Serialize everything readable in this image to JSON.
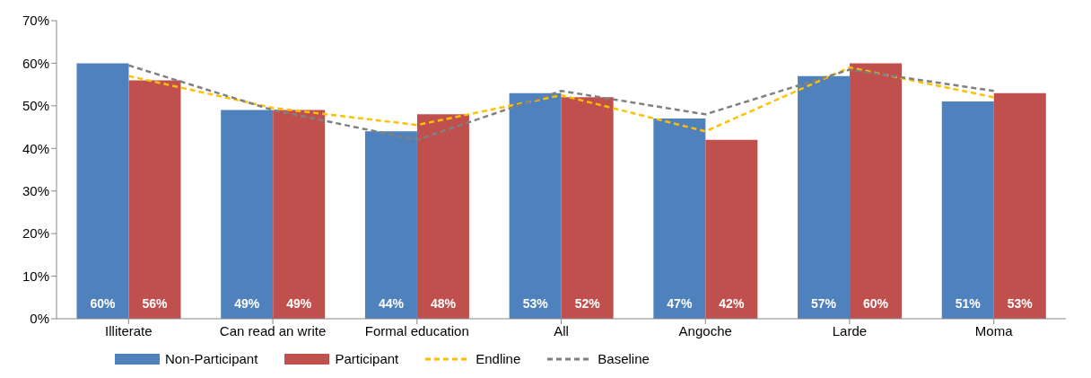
{
  "chart_data": {
    "type": "bar",
    "categories": [
      "Illiterate",
      "Can read an write",
      "Formal education",
      "All",
      "Angoche",
      "Larde",
      "Moma"
    ],
    "series": [
      {
        "name": "Non-Participant",
        "color": "#4f81bd",
        "values": [
          60,
          49,
          44,
          53,
          47,
          57,
          51
        ],
        "value_labels": [
          "60%",
          "49%",
          "44%",
          "53%",
          "47%",
          "57%",
          "51%"
        ]
      },
      {
        "name": "Participant",
        "color": "#c0504d",
        "values": [
          56,
          49,
          48,
          52,
          42,
          60,
          53
        ],
        "value_labels": [
          "56%",
          "49%",
          "48%",
          "52%",
          "42%",
          "60%",
          "53%"
        ]
      },
      {
        "name": "Endline",
        "type": "line",
        "color": "#ffc000",
        "line_style": "dashed",
        "values": [
          57,
          49.5,
          45.5,
          52.5,
          44,
          59,
          52
        ]
      },
      {
        "name": "Baseline",
        "type": "line",
        "color": "#808080",
        "line_style": "dashed",
        "values": [
          59.5,
          49,
          42,
          53.5,
          48,
          58.5,
          53.5
        ]
      }
    ],
    "ylim": [
      0,
      70
    ],
    "yticks": [
      {
        "value": 0,
        "label": "0%"
      },
      {
        "value": 10,
        "label": "10%"
      },
      {
        "value": 20,
        "label": "20%"
      },
      {
        "value": 30,
        "label": "30%"
      },
      {
        "value": 40,
        "label": "40%"
      },
      {
        "value": 50,
        "label": "50%"
      },
      {
        "value": 60,
        "label": "60%"
      },
      {
        "value": 70,
        "label": "70%"
      }
    ],
    "grid": false,
    "legend": "bottom left",
    "marker": "none"
  }
}
